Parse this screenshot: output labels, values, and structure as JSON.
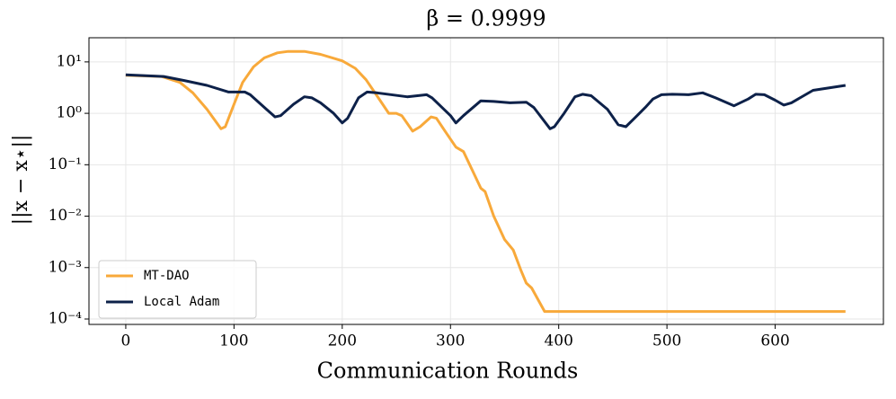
{
  "chart_data": {
    "type": "line",
    "title": "β = 0.9999",
    "xlabel": "Communication Rounds",
    "ylabel": "||x − x⋆||",
    "log_y": true,
    "grid": true,
    "legend": "lower left",
    "xlim": [
      -34,
      700
    ],
    "ylim": [
      7.85e-05,
      29.5
    ],
    "xticks": [
      0,
      100,
      200,
      300,
      400,
      500,
      600
    ],
    "yticks": [
      {
        "value": 10,
        "label": "10¹"
      },
      {
        "value": 1,
        "label": "10⁰"
      },
      {
        "value": 0.1,
        "label": "10⁻¹"
      },
      {
        "value": 0.01,
        "label": "10⁻²"
      },
      {
        "value": 0.001,
        "label": "10⁻³"
      },
      {
        "value": 0.0001,
        "label": "10⁻⁴"
      }
    ],
    "series": [
      {
        "name": "MT-DAO",
        "color": "#f8a93a",
        "x": [
          0,
          33,
          50,
          62,
          75,
          88,
          92,
          100,
          108,
          118,
          128,
          140,
          150,
          165,
          180,
          200,
          212,
          222,
          232,
          243,
          250,
          255,
          265,
          272,
          282,
          287,
          295,
          305,
          312,
          320,
          328,
          332,
          340,
          350,
          358,
          365,
          370,
          375,
          387,
          665
        ],
        "values": [
          5.5,
          5.2,
          4,
          2.5,
          1.2,
          0.5,
          0.55,
          1.5,
          4,
          8,
          12,
          15,
          16,
          16,
          14,
          10.5,
          7.5,
          4.5,
          2.2,
          1.0,
          1.0,
          0.9,
          0.45,
          0.55,
          0.85,
          0.8,
          0.45,
          0.22,
          0.18,
          0.08,
          0.035,
          0.03,
          0.01,
          0.0035,
          0.0022,
          0.0009,
          0.0005,
          0.0004,
          0.00014,
          0.00014
        ]
      },
      {
        "name": "Local Adam",
        "color": "#0d2149",
        "x": [
          0,
          35,
          55,
          75,
          95,
          110,
          115,
          130,
          138,
          143,
          155,
          165,
          172,
          180,
          192,
          200,
          205,
          215,
          223,
          232,
          260,
          278,
          283,
          300,
          305,
          312,
          328,
          340,
          355,
          370,
          377,
          392,
          396,
          405,
          415,
          422,
          430,
          445,
          455,
          462,
          470,
          480,
          487,
          495,
          505,
          520,
          533,
          545,
          562,
          575,
          582,
          590,
          600,
          608,
          615,
          635,
          665
        ],
        "values": [
          5.6,
          5.2,
          4.3,
          3.5,
          2.6,
          2.6,
          2.3,
          1.2,
          0.85,
          0.9,
          1.5,
          2.1,
          2.0,
          1.6,
          1.0,
          0.65,
          0.8,
          2.0,
          2.6,
          2.5,
          2.1,
          2.3,
          2.0,
          0.9,
          0.65,
          0.9,
          1.75,
          1.7,
          1.6,
          1.65,
          1.3,
          0.5,
          0.55,
          1.0,
          2.1,
          2.35,
          2.2,
          1.2,
          0.6,
          0.55,
          0.8,
          1.3,
          1.9,
          2.3,
          2.35,
          2.3,
          2.5,
          2.0,
          1.4,
          1.9,
          2.35,
          2.3,
          1.8,
          1.45,
          1.6,
          2.8,
          3.5
        ]
      }
    ]
  }
}
